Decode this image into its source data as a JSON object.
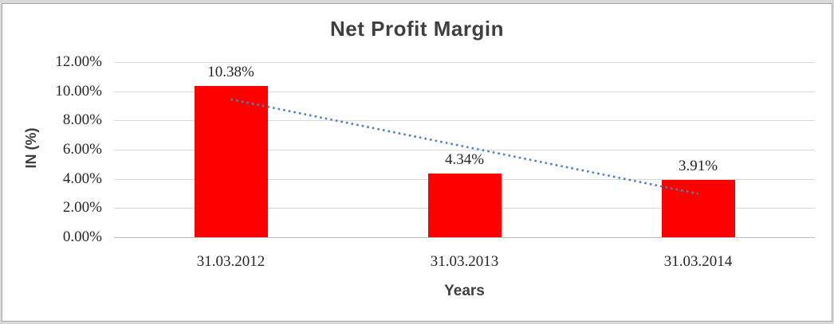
{
  "window": {
    "background_color": "#d9d9d9",
    "frame_fill": "#ffffff",
    "frame_border_color": "#a6a6a6"
  },
  "chart_data": {
    "type": "bar",
    "title": "Net Profit Margin",
    "xlabel": "Years",
    "ylabel": "IN (%)",
    "categories": [
      "31.03.2012",
      "31.03.2013",
      "31.03.2014"
    ],
    "values": [
      10.38,
      4.34,
      3.91
    ],
    "data_labels": [
      "10.38%",
      "4.34%",
      "3.91%"
    ],
    "bar_color": "#ff0000",
    "gridline_color": "#d9d9d9",
    "axis_line_color": "#c0c0c0",
    "legend_position": "none",
    "grid": "horizontal",
    "y_axis": {
      "min": 0,
      "max": 12,
      "ticks": [
        {
          "value": 0,
          "label": "0.00%"
        },
        {
          "value": 2,
          "label": "2.00%"
        },
        {
          "value": 4,
          "label": "4.00%"
        },
        {
          "value": 6,
          "label": "6.00%"
        },
        {
          "value": 8,
          "label": "8.00%"
        },
        {
          "value": 10,
          "label": "10.00%"
        },
        {
          "value": 12,
          "label": "12.00%"
        }
      ]
    },
    "trendline": {
      "type": "linear",
      "style": "dotted",
      "color": "#4f81bd",
      "start_pct": 9.45,
      "end_pct": 2.98
    },
    "text_colors": {
      "title": "#3f3f3f",
      "axis_titles": "#3f3f3f",
      "tick_labels": "#262626",
      "data_labels": "#262626"
    }
  }
}
